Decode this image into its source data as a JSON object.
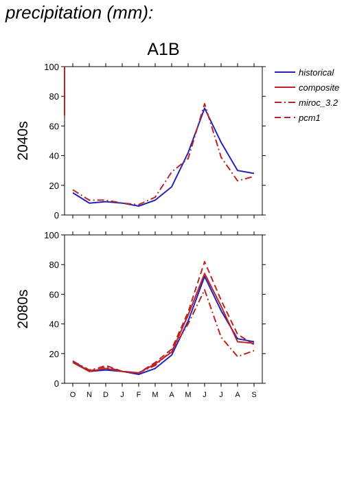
{
  "header": {
    "title": "precipitation (mm):"
  },
  "colors": {
    "historical": "#2222bb",
    "model": "#bb2222"
  },
  "chart_data": [
    {
      "type": "line",
      "title": "A1B",
      "ylabel": "2040s",
      "categories": [
        "O",
        "N",
        "D",
        "J",
        "F",
        "M",
        "A",
        "M",
        "J",
        "J",
        "A",
        "S"
      ],
      "ylim": [
        0,
        100
      ],
      "yticks": [
        0,
        20,
        40,
        60,
        80,
        100
      ],
      "series": [
        {
          "name": "historical",
          "style": "solid",
          "color": "#2222bb",
          "values": [
            15,
            8,
            9,
            8,
            6,
            10,
            19,
            42,
            72,
            49,
            30,
            28
          ]
        },
        {
          "name": "composite",
          "style": "solid",
          "color": "#bb2222",
          "values": [
            null,
            null,
            null,
            null,
            null,
            null,
            null,
            null,
            null,
            null,
            null,
            null
          ]
        },
        {
          "name": "miroc_3.2",
          "style": "dashdot",
          "color": "#bb2222",
          "values": [
            17,
            10,
            10,
            8,
            7,
            12,
            29,
            38,
            75,
            39,
            23,
            26
          ]
        },
        {
          "name": "pcm1",
          "style": "dash",
          "color": "#bb2222",
          "values": [
            null,
            null,
            null,
            null,
            null,
            null,
            null,
            null,
            null,
            null,
            null,
            null
          ]
        }
      ]
    },
    {
      "type": "line",
      "ylabel": "2080s",
      "categories": [
        "O",
        "N",
        "D",
        "J",
        "F",
        "M",
        "A",
        "M",
        "J",
        "J",
        "A",
        "S"
      ],
      "ylim": [
        0,
        100
      ],
      "yticks": [
        0,
        20,
        40,
        60,
        80,
        100
      ],
      "series": [
        {
          "name": "historical",
          "style": "solid",
          "color": "#2222bb",
          "values": [
            15,
            8,
            9,
            8,
            6,
            10,
            19,
            42,
            72,
            49,
            30,
            28
          ]
        },
        {
          "name": "composite",
          "style": "solid",
          "color": "#bb2222",
          "values": [
            14,
            8,
            10,
            8,
            7,
            13,
            21,
            46,
            74,
            52,
            28,
            27
          ]
        },
        {
          "name": "miroc_3.2",
          "style": "dashdot",
          "color": "#bb2222",
          "values": [
            15,
            9,
            11,
            8,
            7,
            12,
            22,
            40,
            63,
            31,
            18,
            22
          ]
        },
        {
          "name": "pcm1",
          "style": "dash",
          "color": "#bb2222",
          "values": [
            15,
            8,
            12,
            8,
            7,
            14,
            23,
            48,
            82,
            56,
            33,
            26
          ]
        }
      ]
    }
  ],
  "legend": {
    "position": "right",
    "items": [
      {
        "label": "historical",
        "style": "solid",
        "color": "#2222bb"
      },
      {
        "label": "composite",
        "style": "solid",
        "color": "#bb2222"
      },
      {
        "label": "miroc_3.2",
        "style": "dashdot",
        "color": "#bb2222"
      },
      {
        "label": "pcm1",
        "style": "dash",
        "color": "#bb2222"
      }
    ]
  }
}
